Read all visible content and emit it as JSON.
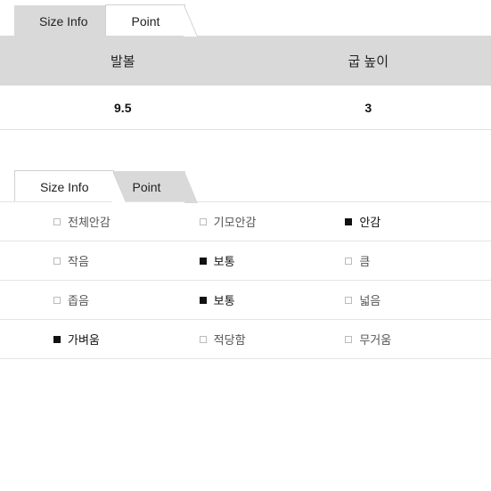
{
  "section1": {
    "tabs": [
      {
        "label": "Size Info",
        "active": true
      },
      {
        "label": "Point",
        "active": false
      }
    ],
    "headers": [
      "발볼",
      "굽 높이"
    ],
    "values": [
      "9.5",
      "3"
    ]
  },
  "section2": {
    "tabs": [
      {
        "label": "Size Info",
        "active": false
      },
      {
        "label": "Point",
        "active": true
      }
    ],
    "rows": [
      {
        "options": [
          {
            "label": "전체안감",
            "selected": false
          },
          {
            "label": "기모안감",
            "selected": false
          },
          {
            "label": "안감",
            "selected": true
          }
        ]
      },
      {
        "options": [
          {
            "label": "작음",
            "selected": false
          },
          {
            "label": "보통",
            "selected": true
          },
          {
            "label": "큼",
            "selected": false
          }
        ]
      },
      {
        "options": [
          {
            "label": "좁음",
            "selected": false
          },
          {
            "label": "보통",
            "selected": true
          },
          {
            "label": "넓음",
            "selected": false
          }
        ]
      },
      {
        "options": [
          {
            "label": "가벼움",
            "selected": true
          },
          {
            "label": "적당함",
            "selected": false
          },
          {
            "label": "무거움",
            "selected": false
          }
        ]
      }
    ]
  }
}
